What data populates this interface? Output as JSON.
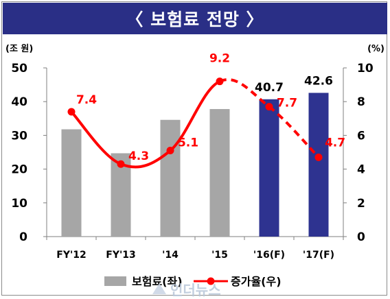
{
  "title": "〈 보험료 전망 〉",
  "chart_data": {
    "type": "bar",
    "categories": [
      "FY'12",
      "FY'13",
      "'14",
      "'15",
      "'16(F)",
      "'17(F)"
    ],
    "series": [
      {
        "name": "보험료(좌)",
        "values": [
          31.8,
          24.7,
          34.6,
          37.8,
          40.7,
          42.6
        ],
        "colors": [
          "#a6a6a6",
          "#a6a6a6",
          "#a6a6a6",
          "#a6a6a6",
          "#2e3390",
          "#2e3390"
        ],
        "data_labels": [
          null,
          null,
          null,
          null,
          "40.7",
          "42.6"
        ]
      },
      {
        "name": "증가율(우)",
        "type": "line",
        "axis": "right",
        "values": [
          7.4,
          4.3,
          5.1,
          9.2,
          7.7,
          4.7
        ],
        "data_labels": [
          "7.4",
          "4.3",
          "5.1",
          "9.2",
          "7.7",
          "4.7"
        ],
        "forecast_from_index": 3,
        "color": "#ff0000"
      }
    ],
    "ylabel_left": "(조 원)",
    "ylabel_right": "(%)",
    "ylim_left": [
      0,
      50
    ],
    "yticks_left": [
      "0",
      "10",
      "20",
      "30",
      "40",
      "50"
    ],
    "ylim_right": [
      0,
      10
    ],
    "yticks_right": [
      "0",
      "2",
      "4",
      "6",
      "8",
      "10"
    ],
    "legend_position": "bottom",
    "grid": false
  },
  "watermark": "인더뉴스"
}
